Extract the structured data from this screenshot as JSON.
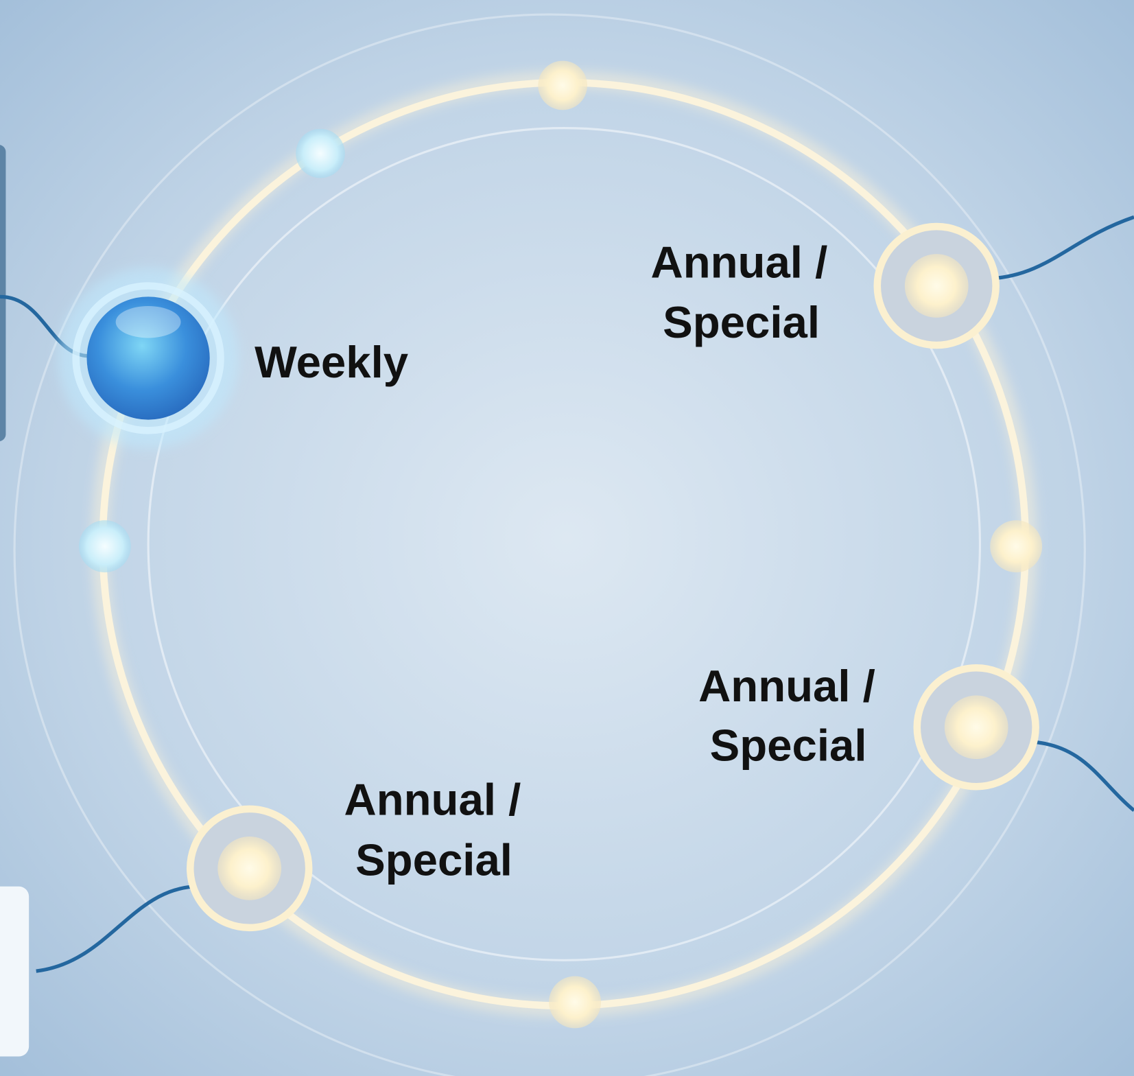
{
  "nodes": [
    {
      "label": [
        "Weekly"
      ]
    },
    {
      "label": [
        "Annual /",
        "Special"
      ]
    },
    {
      "label": [
        "Annual /",
        "Special"
      ]
    },
    {
      "label": [
        "Annual /",
        "Special"
      ]
    }
  ]
}
